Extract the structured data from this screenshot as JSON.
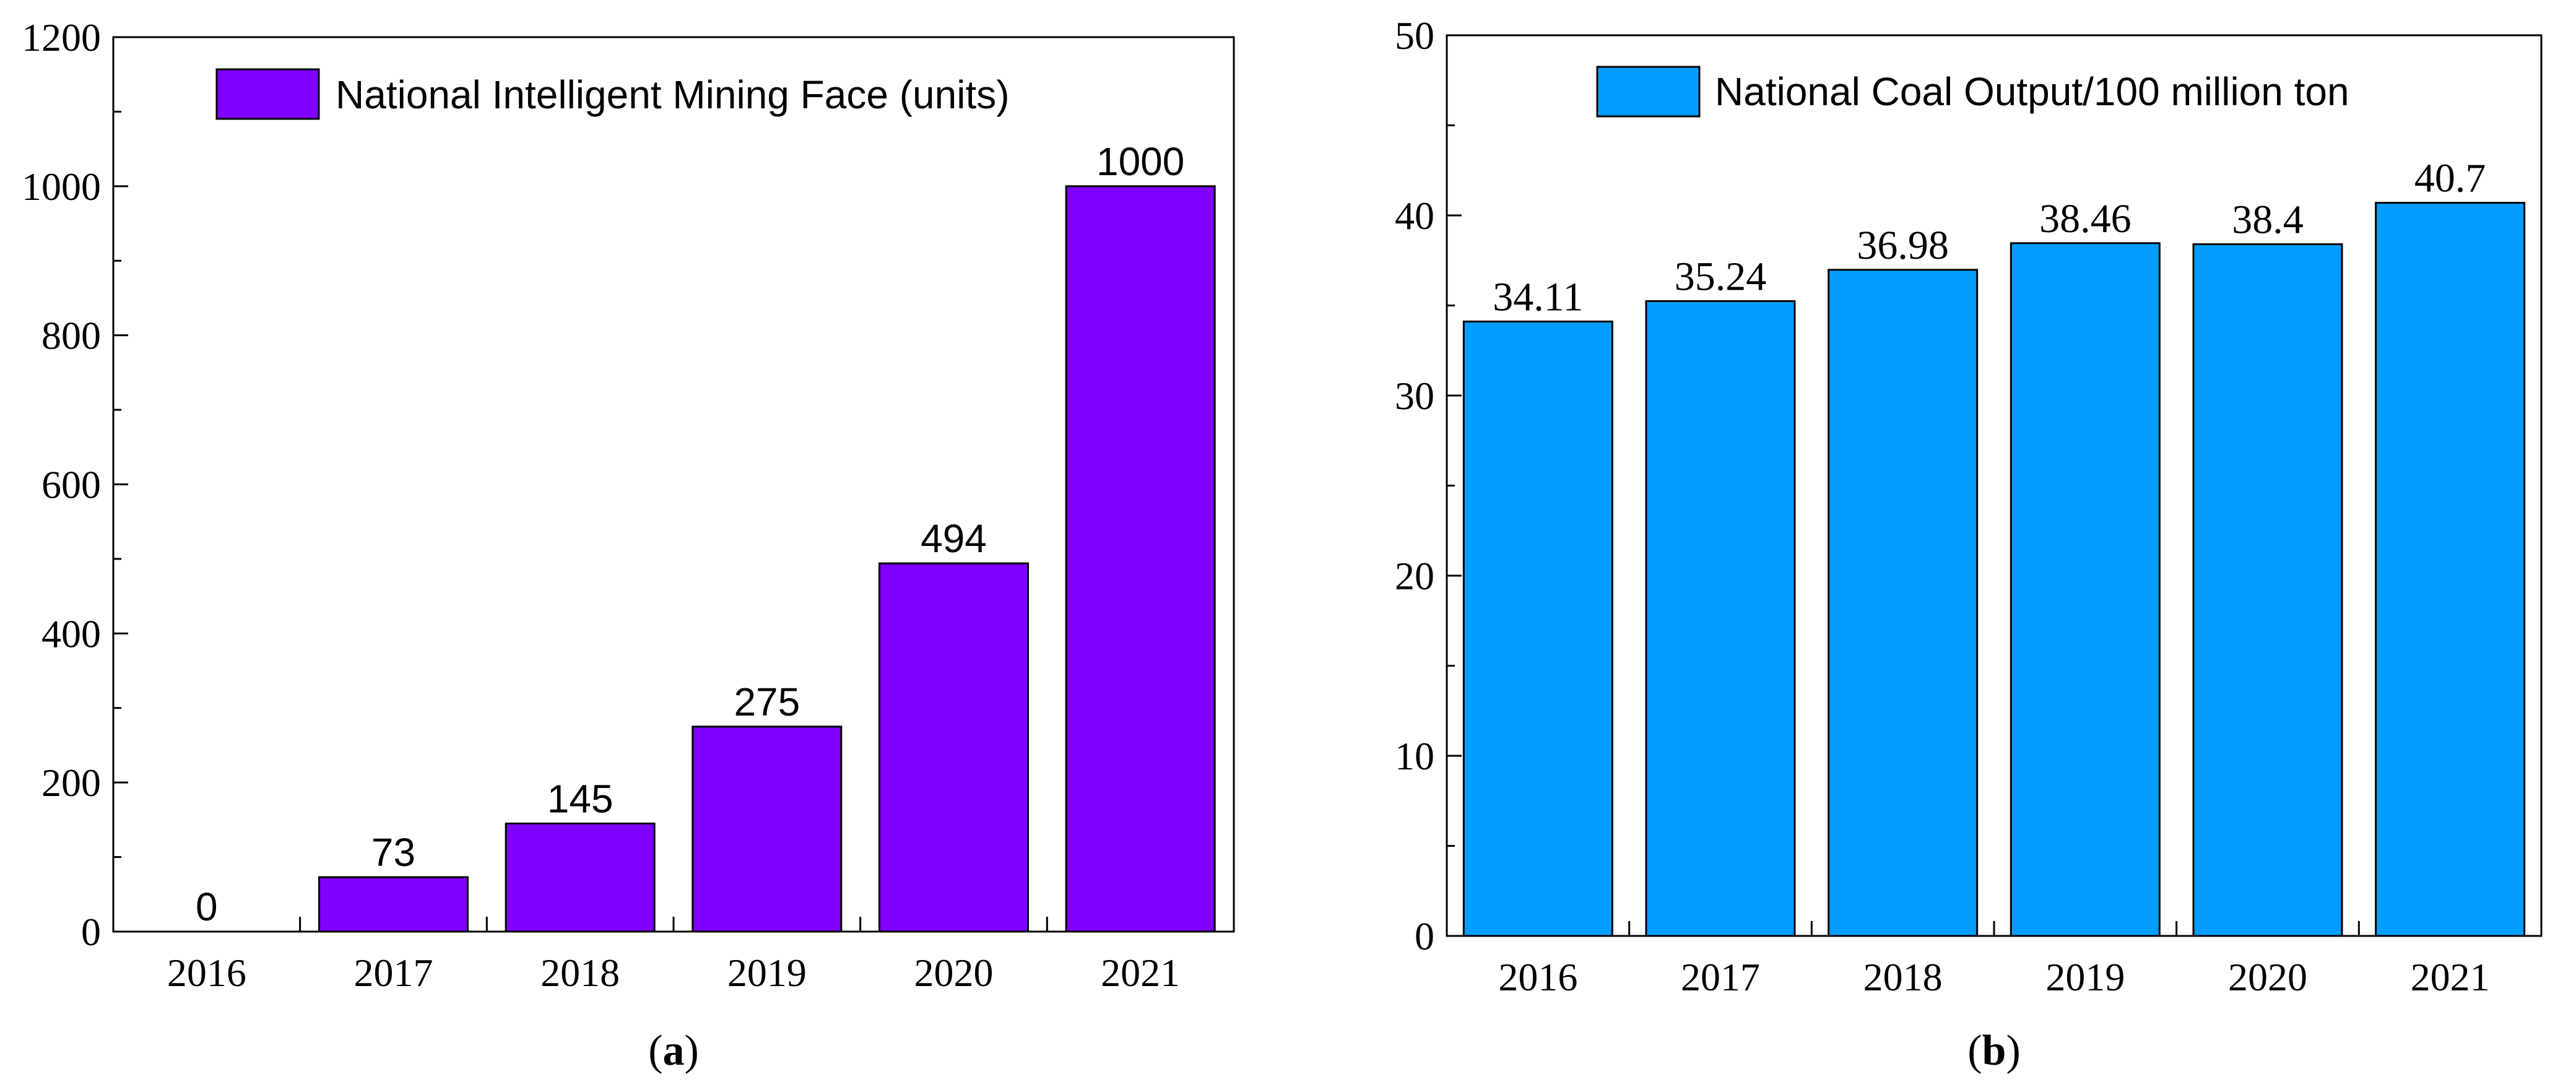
{
  "chart_data": [
    {
      "type": "bar",
      "panel_label": "a",
      "categories": [
        "2016",
        "2017",
        "2018",
        "2019",
        "2020",
        "2021"
      ],
      "values": [
        0,
        73,
        145,
        275,
        494,
        1000
      ],
      "data_labels": [
        "0",
        "73",
        "145",
        "275",
        "494",
        "1000"
      ],
      "legend": "National Intelligent Mining Face (units)",
      "ylim": [
        0,
        1200
      ],
      "yticks": [
        0,
        200,
        400,
        600,
        800,
        1000,
        1200
      ],
      "bar_color": "#7f00ff",
      "xlabel": "",
      "ylabel": ""
    },
    {
      "type": "bar",
      "panel_label": "b",
      "categories": [
        "2016",
        "2017",
        "2018",
        "2019",
        "2020",
        "2021"
      ],
      "values": [
        34.11,
        35.24,
        36.98,
        38.46,
        38.4,
        40.7
      ],
      "data_labels": [
        "34.11",
        "35.24",
        "36.98",
        "38.46",
        "38.4",
        "40.7"
      ],
      "legend": "National Coal Output/100 million ton",
      "ylim": [
        0,
        50
      ],
      "yticks": [
        0,
        10,
        20,
        30,
        40,
        50
      ],
      "bar_color": "#009dff",
      "xlabel": "",
      "ylabel": ""
    }
  ]
}
